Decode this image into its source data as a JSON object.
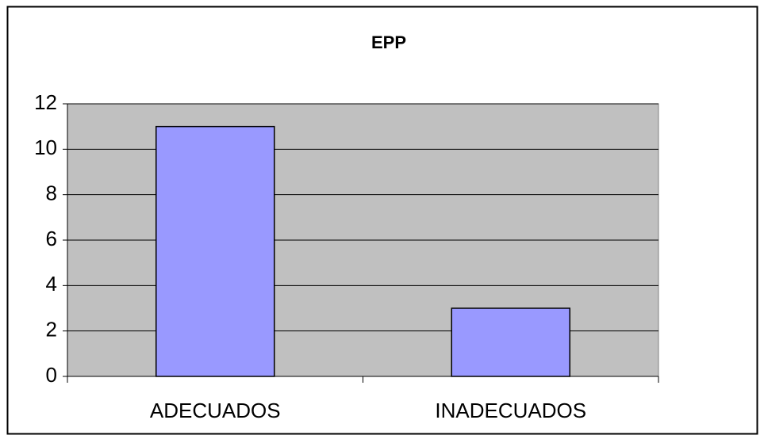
{
  "chart_data": {
    "type": "bar",
    "title": "EPP",
    "categories": [
      "ADECUADOS",
      "INADECUADOS"
    ],
    "values": [
      11,
      3
    ],
    "color": "#9999ff",
    "ylim": [
      0,
      12
    ],
    "yticks": [
      0,
      2,
      4,
      6,
      8,
      10,
      12
    ],
    "grid": true
  }
}
